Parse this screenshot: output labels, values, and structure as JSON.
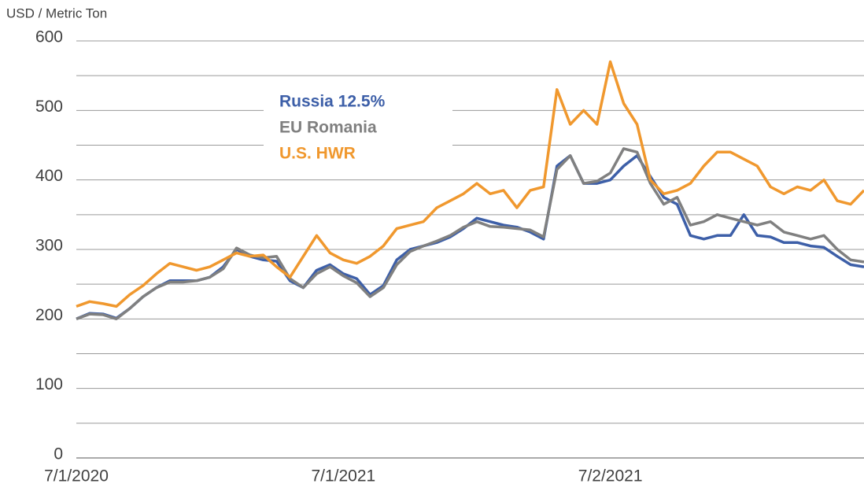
{
  "chart_data": {
    "type": "line",
    "y_axis_label": "USD / Metric Ton",
    "categories": [
      "7/1/2020",
      null,
      null,
      null,
      null,
      null,
      null,
      null,
      null,
      null,
      null,
      null,
      null,
      null,
      null,
      null,
      null,
      null,
      null,
      null,
      "7/1/2021",
      null,
      null,
      null,
      null,
      null,
      null,
      null,
      null,
      null,
      null,
      null,
      null,
      null,
      null,
      null,
      null,
      null,
      null,
      null,
      "7/2/2021",
      null,
      null,
      null,
      null,
      null,
      null,
      null,
      null,
      null,
      null,
      null,
      null,
      null,
      null,
      null,
      null,
      null,
      null,
      null
    ],
    "series": [
      {
        "name": "Russia 12.5%",
        "color": "#3d5fa8",
        "values": [
          200,
          208,
          207,
          201,
          215,
          232,
          245,
          255,
          255,
          255,
          260,
          275,
          300,
          290,
          285,
          283,
          255,
          245,
          270,
          278,
          265,
          258,
          235,
          248,
          285,
          300,
          305,
          310,
          318,
          330,
          345,
          340,
          335,
          332,
          325,
          315,
          420,
          435,
          395,
          395,
          400,
          420,
          435,
          405,
          375,
          365,
          320,
          315,
          320,
          320,
          350,
          320,
          318,
          310,
          310,
          305,
          303,
          290,
          278,
          275
        ]
      },
      {
        "name": "EU Romania",
        "color": "#808080",
        "values": [
          200,
          207,
          206,
          200,
          215,
          232,
          245,
          253,
          253,
          255,
          260,
          272,
          302,
          292,
          288,
          290,
          258,
          245,
          265,
          275,
          262,
          252,
          232,
          245,
          278,
          297,
          305,
          312,
          320,
          332,
          340,
          333,
          332,
          330,
          328,
          318,
          415,
          435,
          395,
          398,
          410,
          445,
          440,
          395,
          365,
          375,
          335,
          340,
          350,
          345,
          340,
          335,
          340,
          325,
          320,
          315,
          320,
          300,
          285,
          282
        ]
      },
      {
        "name": "U.S. HWR",
        "color": "#f0982e",
        "values": [
          218,
          225,
          222,
          218,
          235,
          248,
          265,
          280,
          275,
          270,
          275,
          285,
          295,
          290,
          292,
          275,
          260,
          290,
          320,
          295,
          285,
          280,
          290,
          305,
          330,
          335,
          340,
          360,
          370,
          380,
          395,
          380,
          385,
          360,
          385,
          390,
          530,
          480,
          500,
          480,
          570,
          510,
          480,
          400,
          380,
          385,
          395,
          420,
          440,
          440,
          430,
          420,
          390,
          380,
          390,
          385,
          400,
          370,
          365,
          385
        ]
      }
    ],
    "ylim": [
      0,
      600
    ],
    "yticks": [
      0,
      100,
      200,
      300,
      400,
      500,
      600
    ],
    "minor_yticks": [
      50,
      150,
      250,
      350,
      450,
      550
    ],
    "grid": true
  }
}
